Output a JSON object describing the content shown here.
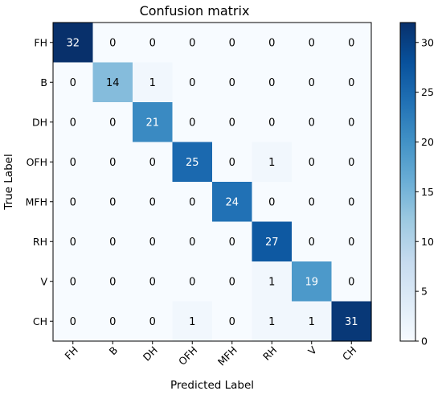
{
  "chart_data": {
    "type": "heatmap",
    "title": "Confusion matrix",
    "xlabel": "Predicted Label",
    "ylabel": "True Label",
    "x_categories": [
      "FH",
      "B",
      "DH",
      "OFH",
      "MFH",
      "RH",
      "V",
      "CH"
    ],
    "y_categories": [
      "FH",
      "B",
      "DH",
      "OFH",
      "MFH",
      "RH",
      "V",
      "CH"
    ],
    "values": [
      [
        32,
        0,
        0,
        0,
        0,
        0,
        0,
        0
      ],
      [
        0,
        14,
        1,
        0,
        0,
        0,
        0,
        0
      ],
      [
        0,
        0,
        21,
        0,
        0,
        0,
        0,
        0
      ],
      [
        0,
        0,
        0,
        25,
        0,
        1,
        0,
        0
      ],
      [
        0,
        0,
        0,
        0,
        24,
        0,
        0,
        0
      ],
      [
        0,
        0,
        0,
        0,
        0,
        27,
        0,
        0
      ],
      [
        0,
        0,
        0,
        0,
        0,
        1,
        19,
        0
      ],
      [
        0,
        0,
        0,
        1,
        0,
        1,
        1,
        31
      ]
    ],
    "colorbar": {
      "min": 0,
      "max": 32,
      "ticks": [
        0,
        5,
        10,
        15,
        20,
        25,
        30
      ],
      "colormap": "Blues"
    }
  }
}
